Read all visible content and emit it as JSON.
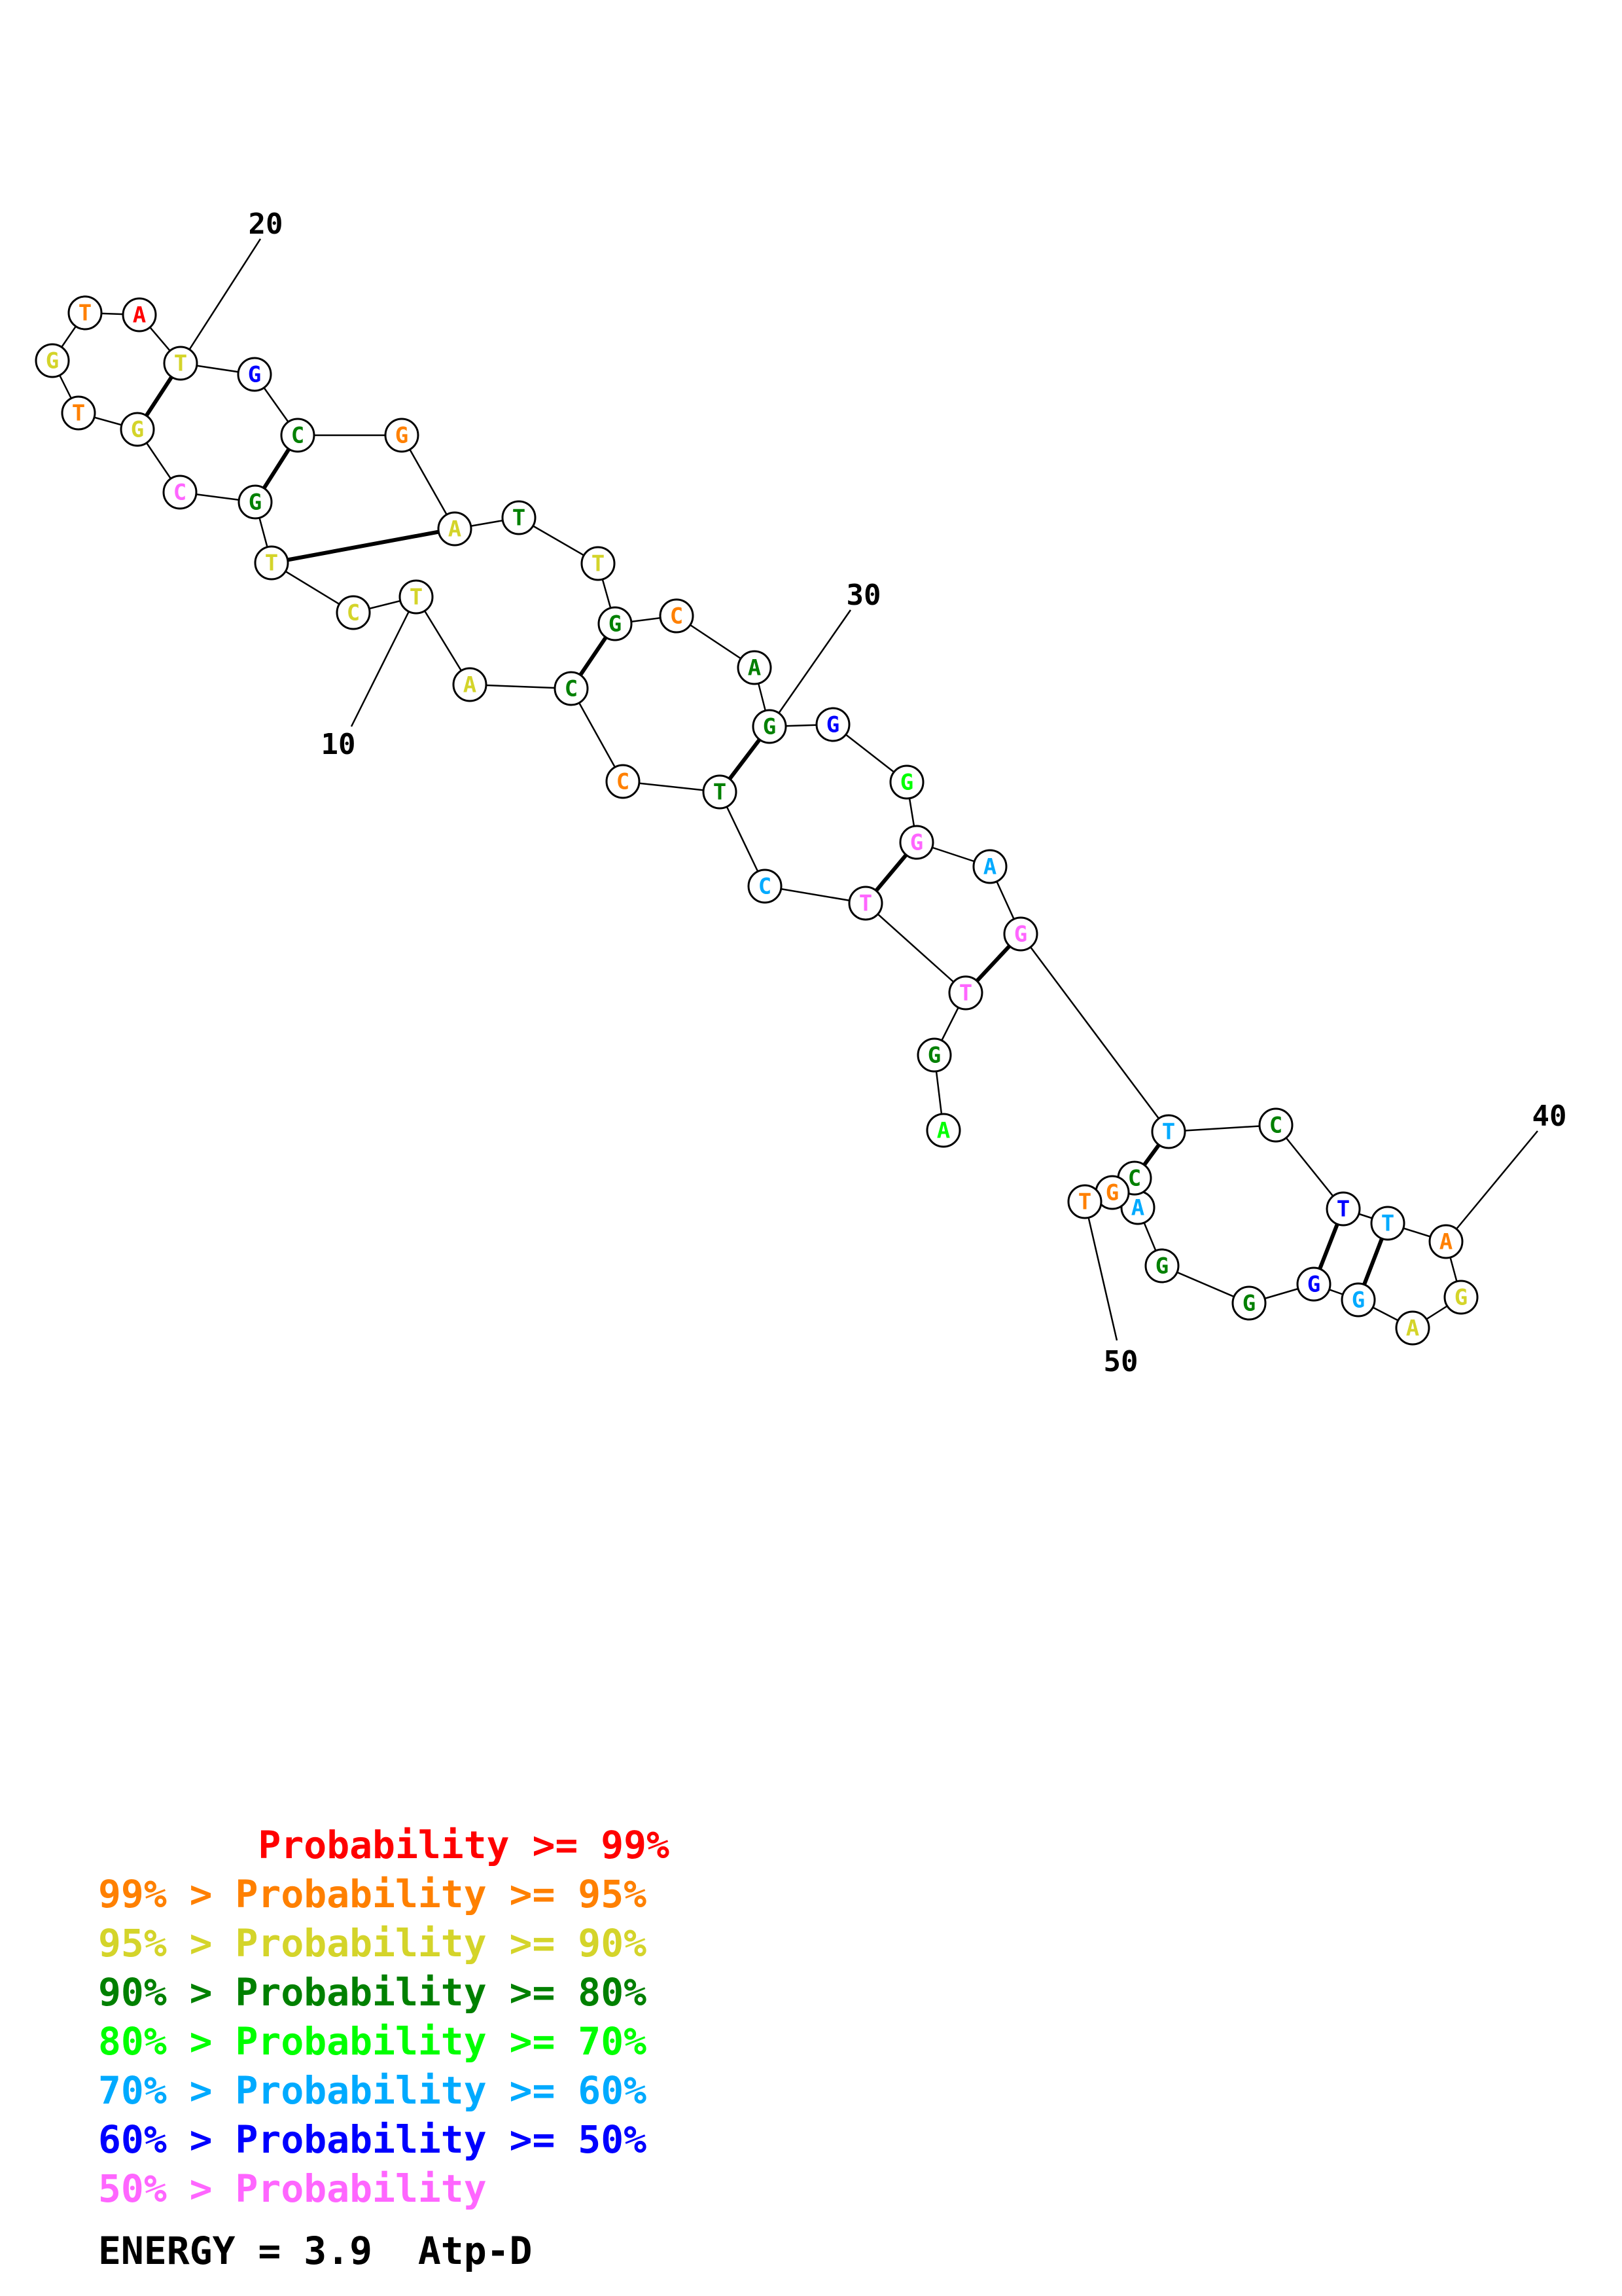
{
  "colors": {
    "p99": "#ff0000",
    "p95": "#ff8000",
    "p90": "#d4d42a",
    "p80": "#008000",
    "p70": "#00ff00",
    "p60": "#00aaff",
    "p50": "#0000ff",
    "plow": "#ff66ff"
  },
  "nucleotides": [
    {
      "n": 1,
      "b": "A",
      "c": "p70"
    },
    {
      "n": 2,
      "b": "G",
      "c": "p80"
    },
    {
      "n": 3,
      "b": "T",
      "c": "plow"
    },
    {
      "n": 4,
      "b": "T",
      "c": "plow"
    },
    {
      "n": 5,
      "b": "C",
      "c": "p60"
    },
    {
      "n": 6,
      "b": "T",
      "c": "p80"
    },
    {
      "n": 7,
      "b": "C",
      "c": "p95"
    },
    {
      "n": 8,
      "b": "C",
      "c": "p80"
    },
    {
      "n": 9,
      "b": "A",
      "c": "p90"
    },
    {
      "n": 10,
      "b": "T",
      "c": "p90"
    },
    {
      "n": 11,
      "b": "C",
      "c": "p90"
    },
    {
      "n": 12,
      "b": "T",
      "c": "p90"
    },
    {
      "n": 13,
      "b": "G",
      "c": "p80"
    },
    {
      "n": 14,
      "b": "C",
      "c": "plow"
    },
    {
      "n": 15,
      "b": "G",
      "c": "p90"
    },
    {
      "n": 16,
      "b": "T",
      "c": "p95"
    },
    {
      "n": 17,
      "b": "G",
      "c": "p90"
    },
    {
      "n": 18,
      "b": "T",
      "c": "p95"
    },
    {
      "n": 19,
      "b": "A",
      "c": "p99"
    },
    {
      "n": 20,
      "b": "T",
      "c": "p90"
    },
    {
      "n": 21,
      "b": "G",
      "c": "p50"
    },
    {
      "n": 22,
      "b": "C",
      "c": "p80"
    },
    {
      "n": 23,
      "b": "G",
      "c": "p95"
    },
    {
      "n": 24,
      "b": "A",
      "c": "p90"
    },
    {
      "n": 25,
      "b": "T",
      "c": "p80"
    },
    {
      "n": 26,
      "b": "T",
      "c": "p90"
    },
    {
      "n": 27,
      "b": "G",
      "c": "p80"
    },
    {
      "n": 28,
      "b": "C",
      "c": "p95"
    },
    {
      "n": 29,
      "b": "A",
      "c": "p80"
    },
    {
      "n": 30,
      "b": "G",
      "c": "p80"
    },
    {
      "n": 31,
      "b": "G",
      "c": "p50"
    },
    {
      "n": 32,
      "b": "G",
      "c": "p70"
    },
    {
      "n": 33,
      "b": "G",
      "c": "plow"
    },
    {
      "n": 34,
      "b": "A",
      "c": "p60"
    },
    {
      "n": 35,
      "b": "G",
      "c": "plow"
    },
    {
      "n": 36,
      "b": "T",
      "c": "p60"
    },
    {
      "n": 37,
      "b": "C",
      "c": "p80"
    },
    {
      "n": 38,
      "b": "T",
      "c": "p50"
    },
    {
      "n": 39,
      "b": "T",
      "c": "p60"
    },
    {
      "n": 40,
      "b": "A",
      "c": "p95"
    },
    {
      "n": 41,
      "b": "G",
      "c": "p90"
    },
    {
      "n": 42,
      "b": "A",
      "c": "p90"
    },
    {
      "n": 43,
      "b": "G",
      "c": "p60"
    },
    {
      "n": 44,
      "b": "G",
      "c": "p50"
    },
    {
      "n": 45,
      "b": "G",
      "c": "p80"
    },
    {
      "n": 46,
      "b": "G",
      "c": "p80"
    },
    {
      "n": 47,
      "b": "A",
      "c": "p60"
    },
    {
      "n": 48,
      "b": "C",
      "c": "p80"
    },
    {
      "n": 49,
      "b": "G",
      "c": "p95"
    },
    {
      "n": 50,
      "b": "T",
      "c": "p95"
    }
  ],
  "pairs": [
    [
      12,
      24
    ],
    [
      13,
      22
    ],
    [
      15,
      20
    ],
    [
      8,
      27
    ],
    [
      6,
      30
    ],
    [
      4,
      33
    ],
    [
      3,
      35
    ],
    [
      36,
      48
    ],
    [
      38,
      44
    ],
    [
      39,
      43
    ]
  ],
  "position_labels": [
    {
      "n": 10,
      "text": "10"
    },
    {
      "n": 20,
      "text": "20"
    },
    {
      "n": 30,
      "text": "30"
    },
    {
      "n": 40,
      "text": "40"
    },
    {
      "n": 50,
      "text": "50"
    }
  ],
  "legend": [
    {
      "text": "       Probability >= 99%",
      "c": "p99"
    },
    {
      "text": "99% > Probability >= 95%",
      "c": "p95"
    },
    {
      "text": "95% > Probability >= 90%",
      "c": "p90"
    },
    {
      "text": "90% > Probability >= 80%",
      "c": "p80"
    },
    {
      "text": "80% > Probability >= 70%",
      "c": "p70"
    },
    {
      "text": "70% > Probability >= 60%",
      "c": "p60"
    },
    {
      "text": "60% > Probability >= 50%",
      "c": "p50"
    },
    {
      "text": "50% > Probability",
      "c": "plow"
    }
  ],
  "energy": "ENERGY = 3.9  Atp-D"
}
